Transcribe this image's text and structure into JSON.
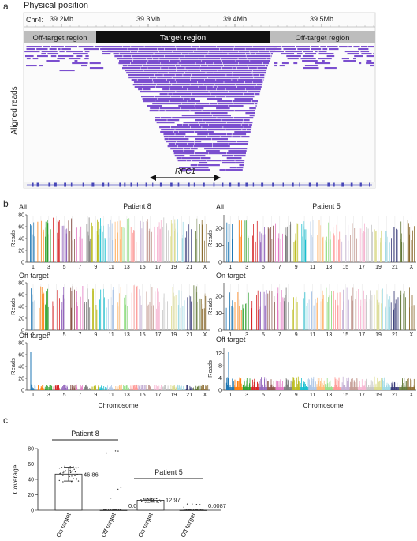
{
  "panel_a": {
    "letter": "a",
    "header": "Physical position",
    "chr_label": "Chr4:",
    "ticks": [
      "39.2Mb",
      "39.3Mb",
      "39.4Mb",
      "39.5Mb"
    ],
    "regions": {
      "left": "Off-target region",
      "middle": "Target region",
      "right": "Off-target region"
    },
    "ylabel": "Aligned reads",
    "gene": "RFC1",
    "colors": {
      "read": "#7b4fcf",
      "target_bar": "#111111",
      "offtarget_bar": "#bdbdbd"
    }
  },
  "panel_b": {
    "letter": "b",
    "patients": [
      "Patient 8",
      "Patient 5"
    ],
    "rows": [
      "All",
      "On target",
      "Off target"
    ],
    "ylabel": "Reads",
    "xlabel": "Chromosome",
    "chrom_ticks": [
      "1",
      "3",
      "5",
      "7",
      "9",
      "11",
      "13",
      "15",
      "17",
      "19",
      "21",
      "X"
    ],
    "p8_yticks": [
      "0",
      "20",
      "40",
      "60",
      "80"
    ],
    "p5_yticks_all": [
      "0",
      "10",
      "20"
    ],
    "p5_yticks_off": [
      "0",
      "4",
      "8",
      "12"
    ],
    "chrom_colors": [
      "#1f77b4",
      "#ff7f0e",
      "#2ca02c",
      "#d62728",
      "#9467bd",
      "#8c564b",
      "#e377c2",
      "#7f7f7f",
      "#bcbd22",
      "#17becf",
      "#aec7e8",
      "#ffbb78",
      "#98df8a",
      "#ff9896",
      "#c5b0d5",
      "#c49c94",
      "#f7b6d2",
      "#c7c7c7",
      "#dbdb8d",
      "#9edae5",
      "#393b79",
      "#637939",
      "#8c6d31"
    ]
  },
  "panel_c": {
    "letter": "c",
    "ylabel": "Coverage",
    "yticks": [
      "0",
      "20",
      "40",
      "60",
      "80"
    ],
    "groups": [
      "Patient 8",
      "Patient 5"
    ],
    "chart_data": {
      "type": "bar",
      "categories": [
        "On target",
        "Off target",
        "On target",
        "Off target"
      ],
      "values": [
        46.86,
        0.041,
        12.97,
        0.0087
      ],
      "value_labels": [
        "46.86",
        "0.041",
        "12.97",
        "0.0087"
      ],
      "ylabel": "Coverage",
      "ylim": [
        0,
        80
      ]
    }
  }
}
